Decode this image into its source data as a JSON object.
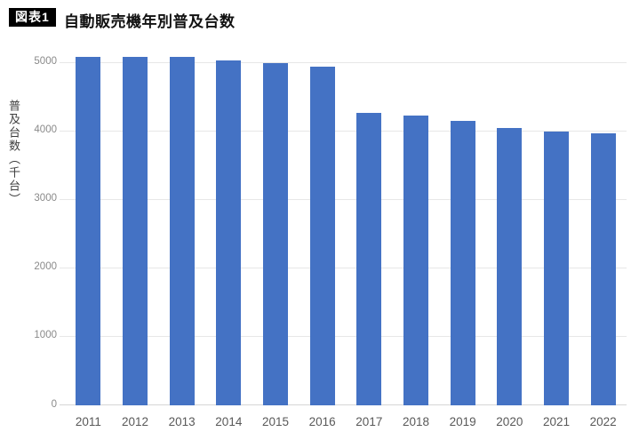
{
  "header": {
    "tag": "図表1",
    "title": "自動販売機年別普及台数"
  },
  "chart_data": {
    "type": "bar",
    "title": "自動販売機年別普及台数",
    "categories": [
      "2011",
      "2012",
      "2013",
      "2014",
      "2015",
      "2016",
      "2017",
      "2018",
      "2019",
      "2020",
      "2021",
      "2022"
    ],
    "values": [
      5080,
      5090,
      5090,
      5030,
      5000,
      4940,
      4270,
      4230,
      4150,
      4050,
      4000,
      3970
    ],
    "xlabel": "",
    "ylabel": "普及台数（千台）",
    "ylim": [
      0,
      5000
    ],
    "yticks": [
      0,
      1000,
      2000,
      3000,
      4000,
      5000
    ],
    "grid": true,
    "legend": false,
    "bar_color": "#4472C4"
  },
  "colors": {
    "bar": "#4472C4",
    "gridline": "#e7e7e7",
    "axis_line": "#d6d6d6",
    "y_tick_label": "#8a8a8a",
    "x_tick_label": "#595959",
    "tag_bg": "#000000",
    "tag_text": "#ffffff"
  }
}
